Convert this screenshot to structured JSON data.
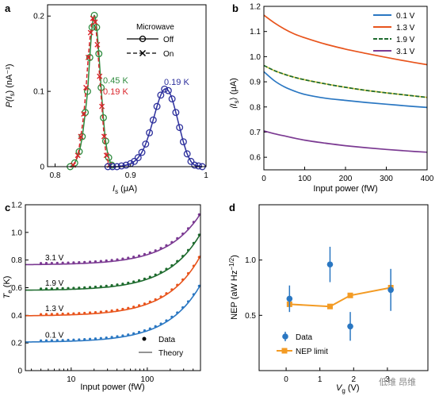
{
  "colors": {
    "axis": "#000000",
    "green": "#2e8b3e",
    "red": "#d9252b",
    "navy": "#2c2f9c",
    "blue": "#2a77c2",
    "orange": "#e8541c",
    "dkgreen": "#1e6b2e",
    "purple": "#7b3a92",
    "nep_orange": "#f39b24",
    "legend_gray": "#555555"
  },
  "panel_labels": {
    "a": "a",
    "b": "b",
    "c": "c",
    "d": "d"
  },
  "watermark": "低维 昂维",
  "chart_data": [
    {
      "panel": "a",
      "type": "line",
      "xlabel_main": "I",
      "xlabel_sub": "s",
      "xlabel_unit": " (μA)",
      "ylabel_pre": "P(I",
      "ylabel_sub": "s",
      "ylabel_post": ") (nA⁻¹)",
      "xlim": [
        0.79,
        1.0
      ],
      "ylim": [
        0,
        0.215
      ],
      "xticks": [
        0.8,
        0.9,
        1.0
      ],
      "xticklabels": [
        "0.8",
        "0.9",
        "1"
      ],
      "yticks": [
        0,
        0.1,
        0.2
      ],
      "yticklabels": [
        "0",
        "0.1",
        "0.2"
      ],
      "legend": {
        "title": "Microwave",
        "entries": [
          "Off",
          "On"
        ]
      },
      "annotations": [
        {
          "text": "0.45 K",
          "color": "green"
        },
        {
          "text": "0.19 K",
          "color": "red"
        },
        {
          "text": "0.19 K",
          "color": "navy"
        }
      ],
      "series": [
        {
          "name": "0.45 K",
          "style": "off",
          "color": "green",
          "x": [
            0.82,
            0.826,
            0.832,
            0.836,
            0.84,
            0.843,
            0.846,
            0.849,
            0.852,
            0.855,
            0.858,
            0.861,
            0.864,
            0.867,
            0.871,
            0.875
          ],
          "y": [
            0.0,
            0.005,
            0.02,
            0.04,
            0.072,
            0.1,
            0.145,
            0.185,
            0.201,
            0.185,
            0.15,
            0.105,
            0.065,
            0.034,
            0.012,
            0.002
          ]
        },
        {
          "name": "0.19 K",
          "style": "on",
          "color": "red",
          "x": [
            0.824,
            0.83,
            0.834,
            0.838,
            0.841,
            0.844,
            0.847,
            0.85,
            0.853,
            0.856,
            0.859,
            0.862,
            0.865,
            0.868,
            0.872
          ],
          "y": [
            0.002,
            0.015,
            0.04,
            0.07,
            0.105,
            0.145,
            0.178,
            0.197,
            0.192,
            0.162,
            0.12,
            0.08,
            0.04,
            0.015,
            0.002
          ]
        },
        {
          "name": "0.19 K",
          "style": "off",
          "color": "navy",
          "x": [
            0.87,
            0.876,
            0.882,
            0.888,
            0.894,
            0.9,
            0.905,
            0.91,
            0.915,
            0.92,
            0.925,
            0.93,
            0.935,
            0.94,
            0.945,
            0.95,
            0.955,
            0.96,
            0.965,
            0.97,
            0.975,
            0.98,
            0.985,
            0.99,
            0.995
          ],
          "y": [
            0.0,
            0.0,
            0.0,
            0.001,
            0.002,
            0.004,
            0.007,
            0.012,
            0.019,
            0.03,
            0.045,
            0.062,
            0.08,
            0.095,
            0.103,
            0.101,
            0.09,
            0.072,
            0.052,
            0.033,
            0.017,
            0.007,
            0.002,
            0.001,
            0.0
          ]
        }
      ]
    },
    {
      "panel": "b",
      "type": "line",
      "xlabel": "Input power (fW)",
      "ylabel_pre": "⟨I",
      "ylabel_sub": "s",
      "ylabel_post": "⟩ (μA)",
      "xlim": [
        0,
        400
      ],
      "ylim": [
        0.55,
        1.2
      ],
      "xticks": [
        0,
        100,
        200,
        300,
        400
      ],
      "xticklabels": [
        "0",
        "100",
        "200",
        "300",
        "400"
      ],
      "yticks": [
        0.6,
        0.7,
        0.8,
        0.9,
        1.0,
        1.1,
        1.2
      ],
      "yticklabels": [
        "0.6",
        "0.7",
        "0.8",
        "0.9",
        "1.0",
        "1.1",
        "1.2"
      ],
      "x": [
        0,
        25,
        50,
        75,
        100,
        150,
        200,
        250,
        300,
        350,
        400
      ],
      "series": [
        {
          "name": "0.1 V",
          "color": "blue",
          "values": [
            0.94,
            0.905,
            0.88,
            0.863,
            0.85,
            0.835,
            0.826,
            0.818,
            0.811,
            0.804,
            0.798
          ]
        },
        {
          "name": "1.3 V",
          "color": "orange",
          "values": [
            1.165,
            1.135,
            1.11,
            1.09,
            1.075,
            1.05,
            1.03,
            1.013,
            0.997,
            0.982,
            0.968
          ]
        },
        {
          "name": "1.9 V",
          "color": "dkgreen",
          "values": [
            0.965,
            0.945,
            0.93,
            0.918,
            0.908,
            0.892,
            0.878,
            0.866,
            0.856,
            0.847,
            0.838
          ]
        },
        {
          "name": "3.1 V",
          "color": "purple",
          "values": [
            0.705,
            0.694,
            0.685,
            0.676,
            0.668,
            0.656,
            0.646,
            0.638,
            0.631,
            0.625,
            0.62
          ]
        }
      ]
    },
    {
      "panel": "c",
      "type": "scatter",
      "xscale": "log",
      "xlabel": "Input power (fW)",
      "ylabel_pre": "T",
      "ylabel_sub": "e",
      "ylabel_post": " (K)",
      "xlim": [
        2.5,
        500
      ],
      "ylim": [
        0,
        1.2
      ],
      "xticks": [
        10,
        100
      ],
      "xticklabels": [
        "10",
        "100"
      ],
      "yticks": [
        0,
        0.2,
        0.4,
        0.6,
        0.8,
        1.0,
        1.2
      ],
      "yticklabels": [
        "0",
        "0.2",
        "0.4",
        "0.6",
        "0.8",
        "1.0",
        "1.2"
      ],
      "legend": {
        "entries": [
          "Data",
          "Theory"
        ]
      },
      "series": [
        {
          "name": "0.1 V",
          "color": "blue",
          "y0": 0.205,
          "k": 0.00083
        },
        {
          "name": "1.3 V",
          "color": "orange",
          "y0": 0.395,
          "k": 0.00087
        },
        {
          "name": "1.9 V",
          "color": "dkgreen",
          "y0": 0.58,
          "k": 0.00082
        },
        {
          "name": "3.1 V",
          "color": "purple",
          "y0": 0.765,
          "k": 0.00074
        }
      ]
    },
    {
      "panel": "d",
      "type": "scatter",
      "xlabel_main": "V",
      "xlabel_sub": "g",
      "xlabel_unit": " (V)",
      "ylabel_pre": "NEP (aW Hz",
      "ylabel_sup": "−1/2",
      "ylabel_post": ")",
      "xlim": [
        -0.8,
        4.2
      ],
      "ylim": [
        0,
        1.5
      ],
      "xticks": [
        0,
        1,
        2,
        3
      ],
      "xticklabels": [
        "0",
        "1",
        "2",
        "3"
      ],
      "yticks": [
        0.5,
        1.0
      ],
      "yticklabels": [
        "0.5",
        "1.0"
      ],
      "legend": {
        "entries": [
          "Data",
          "NEP limit"
        ]
      },
      "data": {
        "x": [
          0.1,
          1.3,
          1.9,
          3.1
        ],
        "y": [
          0.65,
          0.96,
          0.4,
          0.73
        ],
        "err": [
          0.12,
          0.16,
          0.13,
          0.19
        ]
      },
      "nep_limit": {
        "x": [
          0.1,
          1.3,
          1.9,
          3.1
        ],
        "y": [
          0.6,
          0.58,
          0.68,
          0.75
        ]
      }
    }
  ]
}
